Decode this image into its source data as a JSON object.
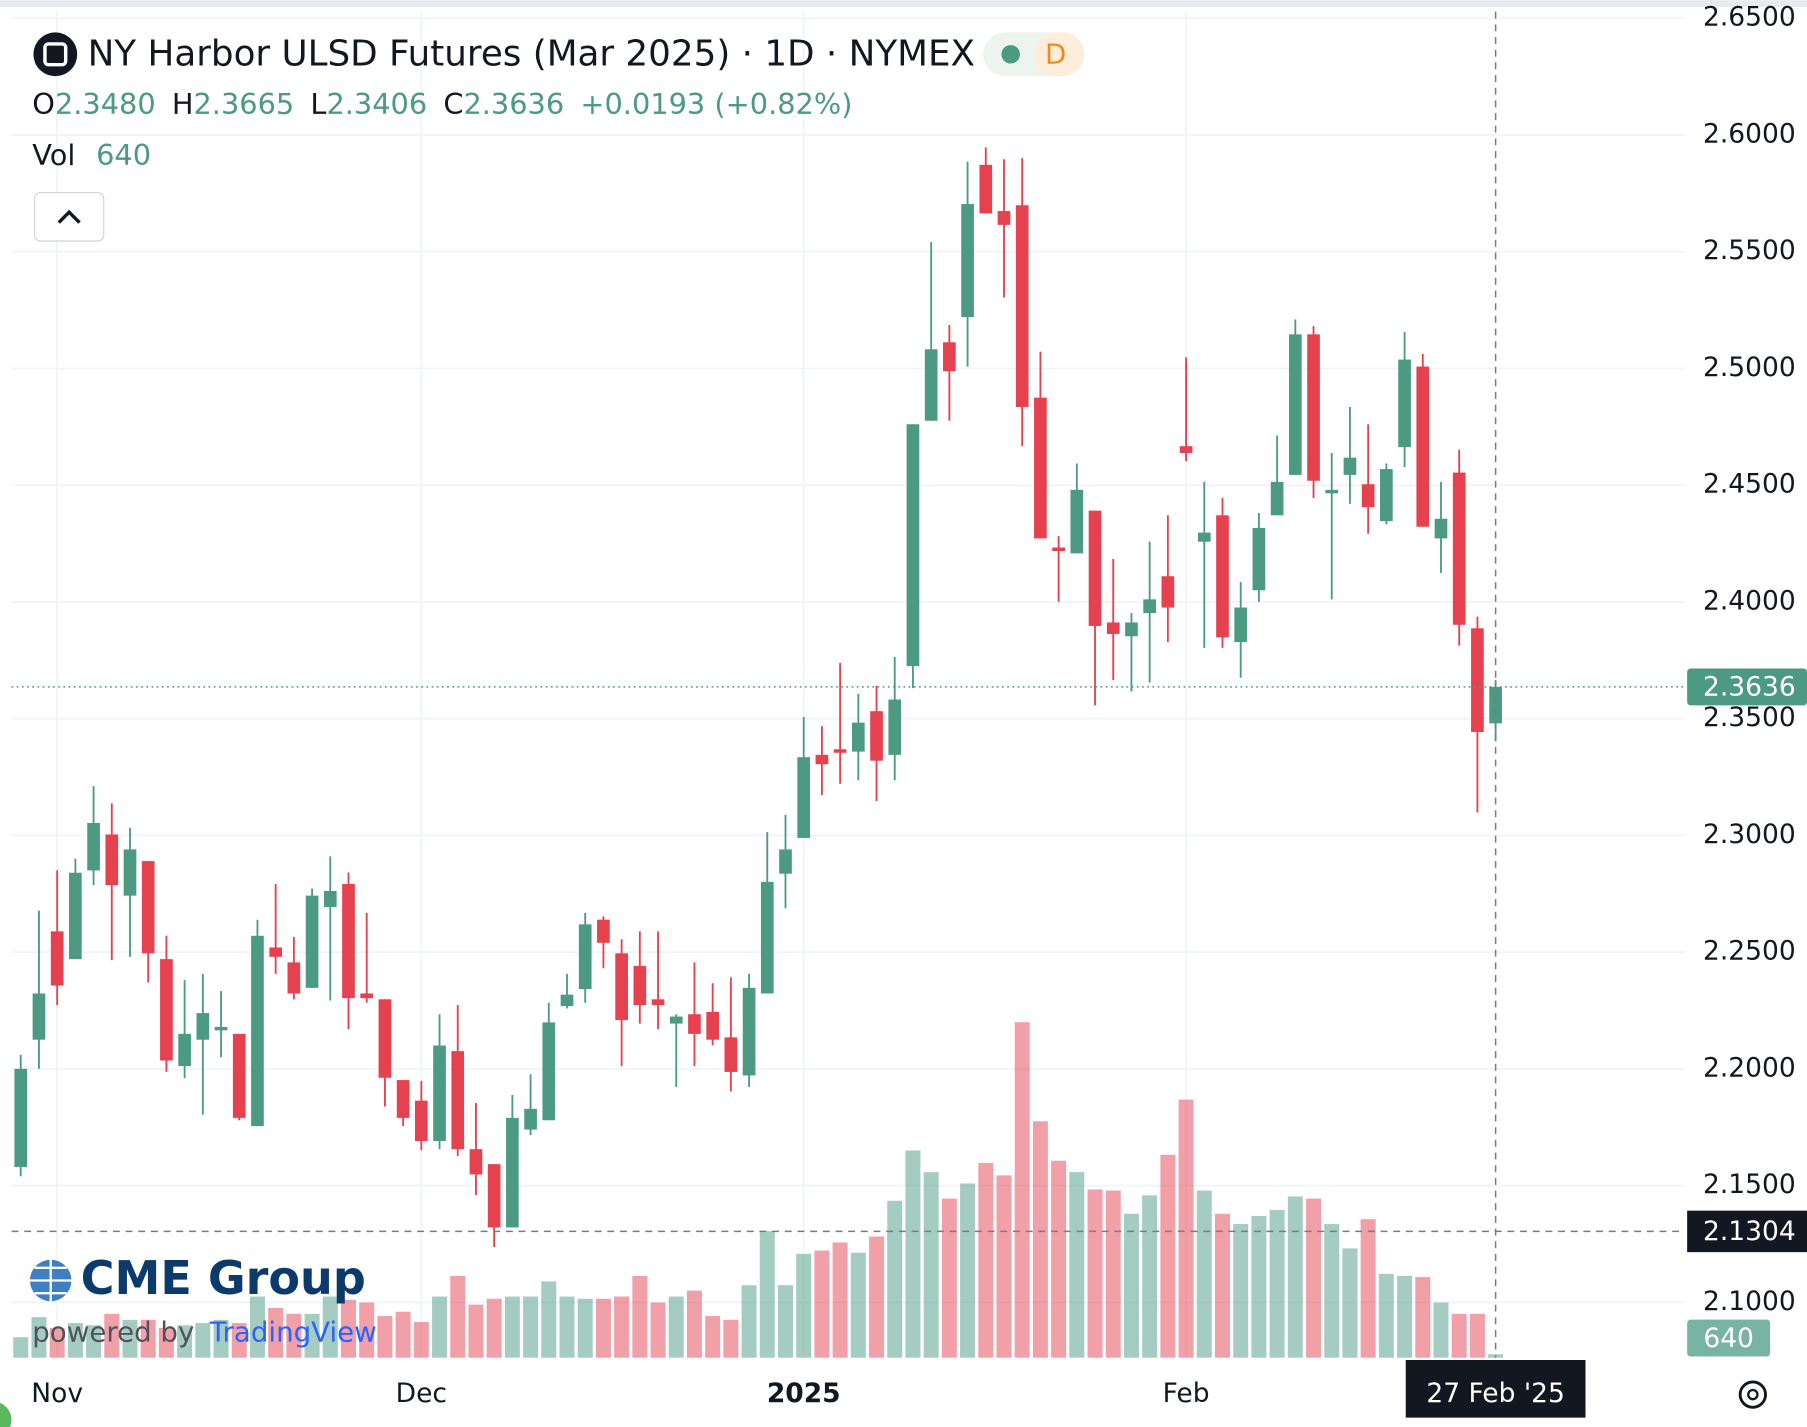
{
  "chart_data": {
    "type": "candlestick",
    "title": "NY Harbor ULSD Futures (Mar 2025) · 1D · NYMEX",
    "interval_badge": "D",
    "ohlc_legend": [
      {
        "key": "O",
        "value": "2.3480"
      },
      {
        "key": "H",
        "value": "2.3665"
      },
      {
        "key": "L",
        "value": "2.3406"
      },
      {
        "key": "C",
        "value": "2.3636"
      }
    ],
    "change": "+0.0193 (+0.82%)",
    "volume_label": "Vol",
    "categories": [
      null,
      null,
      "Nov",
      null,
      null,
      null,
      null,
      null,
      null,
      null,
      null,
      null,
      null,
      null,
      null,
      null,
      null,
      null,
      null,
      null,
      null,
      null,
      "Dec",
      null,
      null,
      null,
      null,
      null,
      null,
      null,
      null,
      null,
      null,
      null,
      null,
      null,
      null,
      null,
      null,
      null,
      null,
      null,
      null,
      "2025",
      null,
      null,
      null,
      null,
      null,
      null,
      null,
      null,
      null,
      null,
      null,
      null,
      null,
      null,
      null,
      null,
      null,
      null,
      null,
      null,
      "Feb",
      null,
      null,
      null,
      null,
      null,
      null,
      null,
      null,
      null,
      null,
      null,
      null,
      null,
      null,
      null,
      null,
      null
    ],
    "open": [
      2.158,
      2.2125,
      2.2589,
      2.247,
      2.285,
      2.3004,
      2.2742,
      2.289,
      2.247,
      2.2012,
      2.2125,
      2.2165,
      2.215,
      2.1755,
      2.252,
      2.2456,
      2.2347,
      2.2693,
      2.2792,
      2.2323,
      2.2298,
      2.1952,
      2.1864,
      2.1691,
      2.2076,
      2.1656,
      2.1592,
      2.1321,
      2.174,
      2.178,
      2.2269,
      2.2342,
      2.2639,
      2.2495,
      2.2441,
      2.2298,
      2.2194,
      2.2234,
      2.2244,
      2.2135,
      2.1972,
      2.2323,
      2.2836,
      2.2989,
      2.3345,
      2.3369,
      2.3359,
      2.3532,
      2.3345,
      2.3725,
      2.4776,
      2.5112,
      2.522,
      2.5872,
      2.5674,
      2.5699,
      2.4875,
      2.4233,
      2.4208,
      2.4391,
      2.3912,
      2.3853,
      2.3952,
      2.411,
      2.4667,
      2.4258,
      2.4371,
      2.3828,
      2.405,
      2.4371,
      2.4544,
      2.5146,
      2.4465,
      2.4544,
      2.4504,
      2.4346,
      2.4663,
      2.5008,
      2.4272,
      2.4554,
      2.3887,
      2.348
    ],
    "high": [
      2.206,
      2.2678,
      2.2851,
      2.29,
      2.3211,
      2.3137,
      2.3033,
      2.289,
      2.257,
      2.238,
      2.2407,
      2.2333,
      2.215,
      2.2639,
      2.2792,
      2.2565,
      2.2772,
      2.291,
      2.2841,
      2.2668,
      2.2298,
      2.1952,
      2.1948,
      2.2234,
      2.2273,
      2.1854,
      2.1592,
      2.1888,
      2.1977,
      2.2283,
      2.2407,
      2.2668,
      2.2653,
      2.2555,
      2.2589,
      2.2589,
      2.2234,
      2.2456,
      2.2367,
      2.2392,
      2.2407,
      2.3014,
      2.3088,
      2.3507,
      2.3468,
      2.3739,
      2.3606,
      2.3641,
      2.3764,
      2.4761,
      2.5541,
      2.5186,
      2.5886,
      2.5946,
      2.5896,
      2.5901,
      2.5072,
      2.4282,
      2.4593,
      2.4391,
      2.4184,
      2.3952,
      2.4258,
      2.4371,
      2.5047,
      2.4514,
      2.4445,
      2.4085,
      2.4381,
      2.4712,
      2.521,
      2.5181,
      2.4638,
      2.4835,
      2.4761,
      2.4593,
      2.5156,
      2.5062,
      2.4514,
      2.4652,
      2.3937,
      2.3665
    ],
    "low": [
      2.154,
      2.2,
      2.2273,
      2.247,
      2.2787,
      2.2466,
      2.248,
      2.237,
      2.1987,
      2.196,
      2.1804,
      2.205,
      2.178,
      2.1755,
      2.2407,
      2.2298,
      2.2347,
      2.2293,
      2.217,
      2.2283,
      2.1839,
      2.1755,
      2.1651,
      2.1656,
      2.1627,
      2.1459,
      2.1237,
      2.1321,
      2.1716,
      2.178,
      2.2259,
      2.2283,
      2.2431,
      2.2012,
      2.2194,
      2.217,
      2.1923,
      2.2012,
      2.2101,
      2.1903,
      2.1923,
      2.2323,
      2.2688,
      2.2989,
      2.3172,
      2.3221,
      2.3236,
      2.3147,
      2.3236,
      2.3631,
      2.4776,
      2.4776,
      2.5008,
      2.5664,
      2.5304,
      2.4667,
      2.4272,
      2.4,
      2.4208,
      2.3557,
      2.3665,
      2.3616,
      2.3655,
      2.3828,
      2.4603,
      2.3803,
      2.3803,
      2.3675,
      2.4,
      2.4371,
      2.4544,
      2.4445,
      2.4011,
      2.442,
      2.4292,
      2.4332,
      2.4578,
      2.4322,
      2.4124,
      2.3813,
      2.3098,
      2.3406
    ],
    "close": [
      2.2,
      2.2323,
      2.2357,
      2.284,
      2.3053,
      2.2787,
      2.294,
      2.2495,
      2.2036,
      2.215,
      2.2239,
      2.218,
      2.179,
      2.257,
      2.248,
      2.2323,
      2.2742,
      2.2762,
      2.2303,
      2.2303,
      2.1962,
      2.179,
      2.1691,
      2.21,
      2.1656,
      2.1548,
      2.1321,
      2.179,
      2.1829,
      2.2199,
      2.2318,
      2.2619,
      2.254,
      2.2209,
      2.2273,
      2.2273,
      2.2224,
      2.215,
      2.2125,
      2.1987,
      2.2347,
      2.2801,
      2.294,
      2.3335,
      2.3305,
      2.3354,
      2.3483,
      2.332,
      2.3582,
      2.4761,
      2.5082,
      2.4988,
      2.5704,
      2.5664,
      2.5615,
      2.4835,
      2.4272,
      2.4218,
      2.448,
      2.3897,
      2.3863,
      2.3912,
      2.4011,
      2.3976,
      2.4638,
      2.4297,
      2.3848,
      2.3976,
      2.4317,
      2.4514,
      2.5146,
      2.4519,
      2.448,
      2.4618,
      2.4406,
      2.4569,
      2.5038,
      2.4322,
      2.4356,
      2.3902,
      2.3443,
      2.3636
    ],
    "volume": [
      3800,
      7500,
      5500,
      6400,
      6000,
      8100,
      7000,
      7000,
      5500,
      6000,
      6400,
      7000,
      6400,
      11300,
      9200,
      8100,
      8100,
      11300,
      10700,
      10200,
      7700,
      8500,
      6600,
      11300,
      15100,
      9800,
      10900,
      11300,
      11300,
      14100,
      11300,
      10900,
      10900,
      11300,
      15100,
      10200,
      11300,
      12400,
      7700,
      7000,
      13400,
      23400,
      13400,
      19200,
      19800,
      21300,
      19400,
      22400,
      29000,
      38300,
      34300,
      29400,
      32200,
      36000,
      33700,
      62000,
      43700,
      36400,
      34300,
      31100,
      30900,
      26600,
      30000,
      37500,
      47700,
      30900,
      26600,
      24700,
      26200,
      27300,
      29800,
      29400,
      24700,
      20200,
      25600,
      15500,
      15100,
      14900,
      10200,
      8100,
      8100,
      640
    ],
    "up_color": "#4c9a82",
    "down_color": "#e5414f",
    "ylim": [
      2.0763,
      2.6528
    ],
    "yticks": [
      {
        "value": 2.1,
        "label": "2.1000"
      },
      {
        "value": 2.15,
        "label": "2.1500"
      },
      {
        "value": 2.2,
        "label": "2.2000"
      },
      {
        "value": 2.25,
        "label": "2.2500"
      },
      {
        "value": 2.3,
        "label": "2.3000"
      },
      {
        "value": 2.35,
        "label": "2.3500"
      },
      {
        "value": 2.4,
        "label": "2.4000"
      },
      {
        "value": 2.45,
        "label": "2.4500"
      },
      {
        "value": 2.5,
        "label": "2.5000"
      },
      {
        "value": 2.55,
        "label": "2.5500"
      },
      {
        "value": 2.6,
        "label": "2.6000"
      },
      {
        "value": 2.65,
        "label": "2.6500"
      }
    ],
    "volume_lim": [
      0,
      80000
    ],
    "crosshair_price": 2.1304,
    "crosshair_date": "27 Feb '25",
    "grid": true,
    "branding": {
      "logo": "CME Group",
      "powered": "powered by",
      "platform": "TradingView"
    }
  }
}
